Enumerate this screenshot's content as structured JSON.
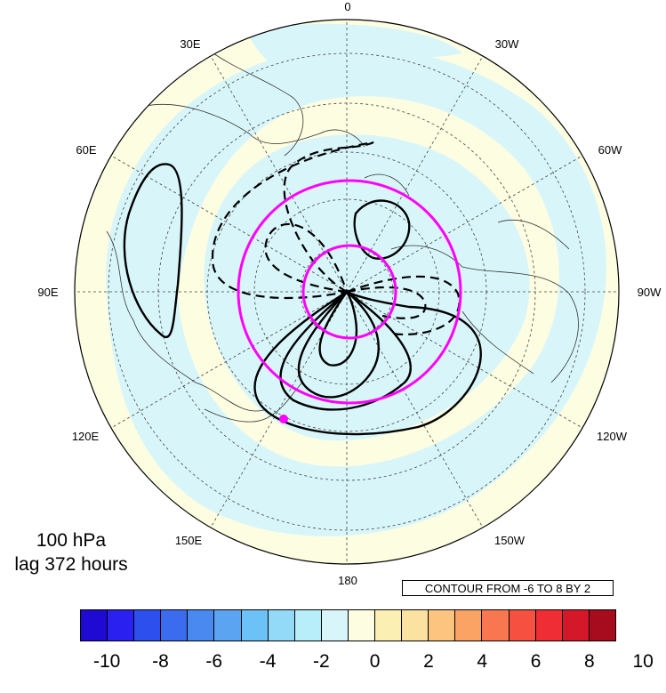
{
  "map": {
    "projection": "north polar stereographic",
    "longitude_labels": [
      {
        "text": "0",
        "lon": 0
      },
      {
        "text": "30W",
        "lon": -30
      },
      {
        "text": "60W",
        "lon": -60
      },
      {
        "text": "90W",
        "lon": -90
      },
      {
        "text": "120W",
        "lon": -120
      },
      {
        "text": "150W",
        "lon": -150
      },
      {
        "text": "180",
        "lon": 180
      },
      {
        "text": "150E",
        "lon": 150
      },
      {
        "text": "120E",
        "lon": 120
      },
      {
        "text": "90E",
        "lon": 90
      },
      {
        "text": "60E",
        "lon": 60
      },
      {
        "text": "30E",
        "lon": 30
      }
    ],
    "colors": {
      "land_outline": "#333333",
      "grid": "#444444",
      "contour": "#000000",
      "highlight": "#ff00ff"
    }
  },
  "annotations": {
    "level": "100 hPa",
    "lag": "lag 372 hours",
    "contour_note": "CONTOUR FROM -6 TO 8 BY 2"
  },
  "colorbar": {
    "colors": [
      "#1e0ad2",
      "#2a20f0",
      "#2c4fee",
      "#3b6cf0",
      "#4a8af0",
      "#5aa4f2",
      "#6cc2f6",
      "#92daf8",
      "#b8eefa",
      "#d8f6fa",
      "#fdfde2",
      "#fcefb4",
      "#fce2a0",
      "#fcc47e",
      "#fba364",
      "#f87650",
      "#f55040",
      "#ee2e34",
      "#d4182a",
      "#a60b1e"
    ],
    "tick_labels": [
      "-10",
      "-8",
      "-6",
      "-4",
      "-2",
      "0",
      "2",
      "4",
      "6",
      "8",
      "10"
    ]
  }
}
